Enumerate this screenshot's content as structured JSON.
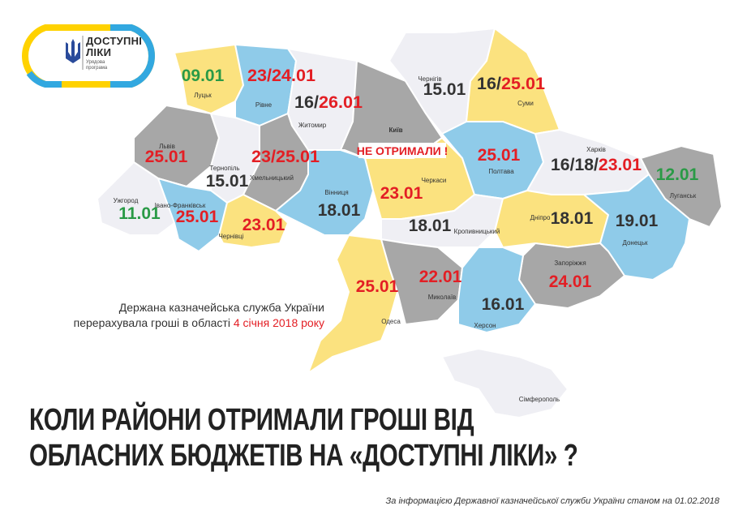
{
  "logo": {
    "title_line1": "ДОСТУПНІ",
    "title_line2": "ЛІКИ",
    "subtitle_line1": "Урядова",
    "subtitle_line2": "програма"
  },
  "colors": {
    "yellow": "#fbe27f",
    "blue": "#8fcbe9",
    "gray": "#a7a7a7",
    "white": "#efeff4",
    "red": "#e31e24",
    "green": "#2a9a46",
    "dark": "#333333"
  },
  "regions": [
    {
      "name": "Луцьк",
      "date": "09.01",
      "date_color": "green",
      "fill": "yellow"
    },
    {
      "name": "Рівне",
      "date": "23/24.01",
      "date_color": "red",
      "fill": "blue"
    },
    {
      "name": "Житомир",
      "date": "16/26.01",
      "date_color": "mixed",
      "fill": "white"
    },
    {
      "name": "Київ",
      "date": "НЕ ОТРИМАЛИ !",
      "date_color": "red",
      "fill": "gray"
    },
    {
      "name": "Чернігів",
      "date": "15.01",
      "date_color": "dark",
      "fill": "white"
    },
    {
      "name": "Суми",
      "date": "16/25.01",
      "date_color": "mixed",
      "fill": "yellow"
    },
    {
      "name": "Львів",
      "date": "25.01",
      "date_color": "red",
      "fill": "gray"
    },
    {
      "name": "Тернопіль",
      "date": "15.01",
      "date_color": "dark",
      "fill": "white"
    },
    {
      "name": "Хмельницький",
      "date": "23/25.01",
      "date_color": "red",
      "fill": "gray"
    },
    {
      "name": "Вінниця",
      "date": "18.01",
      "date_color": "dark",
      "fill": "blue"
    },
    {
      "name": "Черкаси",
      "date": "23.01",
      "date_color": "red",
      "fill": "yellow"
    },
    {
      "name": "Полтава",
      "date": "25.01",
      "date_color": "red",
      "fill": "blue"
    },
    {
      "name": "Харків",
      "date": "16/18/23.01",
      "date_color": "mixed",
      "fill": "white"
    },
    {
      "name": "Луганськ",
      "date": "12.01",
      "date_color": "green",
      "fill": "gray"
    },
    {
      "name": "Ужгород",
      "date": "11.01",
      "date_color": "green",
      "fill": "white"
    },
    {
      "name": "Івано-Франківськ",
      "date": "25.01",
      "date_color": "red",
      "fill": "blue"
    },
    {
      "name": "Чернівці",
      "date": "23.01",
      "date_color": "red",
      "fill": "yellow"
    },
    {
      "name": "Кропивницький",
      "date": "18.01",
      "date_color": "dark",
      "fill": "white"
    },
    {
      "name": "Дніпро",
      "date": "18.01",
      "date_color": "dark",
      "fill": "yellow"
    },
    {
      "name": "Донецьк",
      "date": "19.01",
      "date_color": "dark",
      "fill": "blue"
    },
    {
      "name": "Запоріжжя",
      "date": "24.01",
      "date_color": "red",
      "fill": "gray"
    },
    {
      "name": "Одеса",
      "date": "25.01",
      "date_color": "red",
      "fill": "yellow"
    },
    {
      "name": "Миколаїв",
      "date": "22.01",
      "date_color": "red",
      "fill": "gray"
    },
    {
      "name": "Херсон",
      "date": "16.01",
      "date_color": "dark",
      "fill": "blue"
    },
    {
      "name": "Сімферополь",
      "date": "",
      "date_color": "dark",
      "fill": "white"
    }
  ],
  "mixed_parts": {
    "zhytomyr": [
      "16/",
      "26.01"
    ],
    "sumy": [
      "16/",
      "25.01"
    ],
    "kharkiv": [
      "16/18/",
      "23.01"
    ]
  },
  "note": {
    "line1": "Держана казначейська служба України",
    "line2_prefix": "перерахувала гроші в області ",
    "line2_highlight": "4 січня 2018 року"
  },
  "headline": {
    "line1": "КОЛИ РАЙОНИ ОТРИМАЛИ ГРОШІ ВІД",
    "line2": "ОБЛАСНИХ БЮДЖЕТІВ НА «ДОСТУПНІ ЛІКИ» ?"
  },
  "footer": "За інформацією Державної казначейської служби України станом на 01.02.2018"
}
